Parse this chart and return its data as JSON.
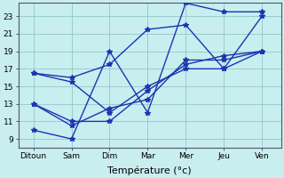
{
  "days": [
    "Ditoun",
    "Sam",
    "Dim",
    "Mar",
    "Mer",
    "Jeu",
    "Ven"
  ],
  "x_positions": [
    0,
    1,
    2,
    3,
    4,
    5,
    6
  ],
  "line1": [
    13,
    10.5,
    12.5,
    13.5,
    18,
    18,
    19
  ],
  "line2": [
    13,
    11,
    11,
    14.5,
    17.5,
    18.5,
    19
  ],
  "line3": [
    10,
    9,
    19,
    12,
    24.5,
    23.5,
    23.5
  ],
  "line4": [
    16.5,
    16,
    17.5,
    21.5,
    22,
    17,
    23
  ],
  "line5": [
    16.5,
    15.5,
    12,
    15,
    17,
    17,
    19
  ],
  "ylim": [
    8.0,
    24.5
  ],
  "yticks": [
    9,
    11,
    13,
    15,
    17,
    19,
    21,
    23
  ],
  "xlim": [
    -0.4,
    6.5
  ],
  "line_color": "#1a35b0",
  "bg_color": "#c8eef0",
  "grid_color": "#90c8c8",
  "marker": "*",
  "markersize": 4.0,
  "linewidth": 1.0,
  "xlabel": "Température (°c)",
  "xlabel_fontsize": 8,
  "tick_fontsize": 6.5,
  "figsize": [
    3.2,
    2.0
  ],
  "dpi": 100
}
